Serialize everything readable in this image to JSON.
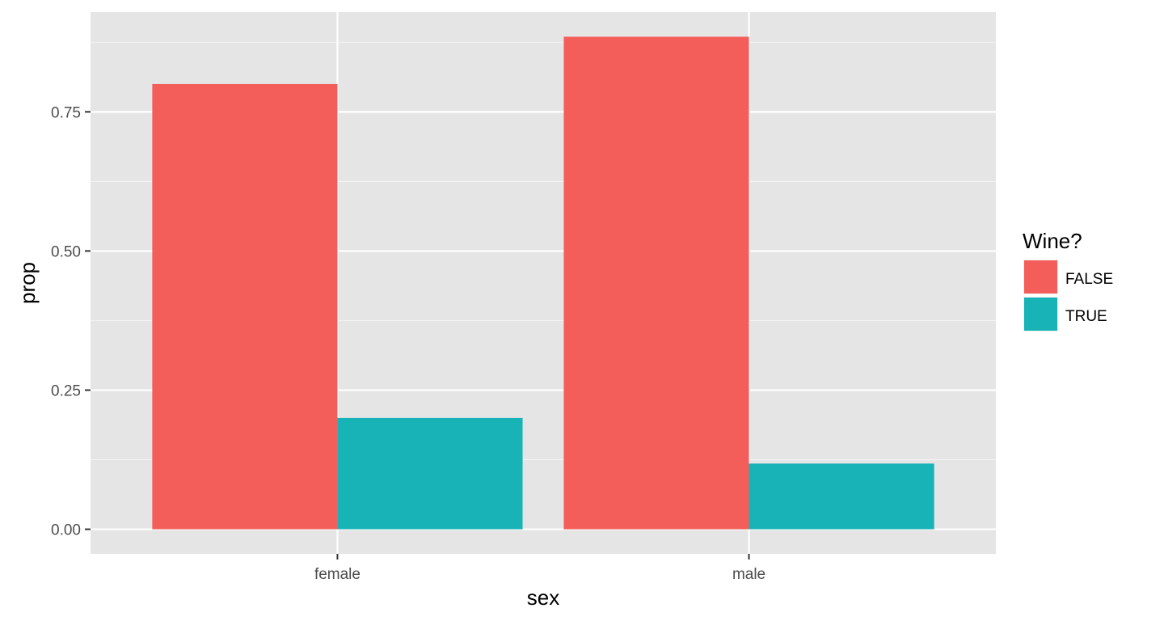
{
  "chart_data": {
    "type": "bar",
    "title": "",
    "xlabel": "sex",
    "ylabel": "prop",
    "categories": [
      "female",
      "male"
    ],
    "series": [
      {
        "name": "FALSE",
        "color": "#F35E5A",
        "values": [
          0.8,
          0.885
        ]
      },
      {
        "name": "TRUE",
        "color": "#17B3B7",
        "values": [
          0.2,
          0.118
        ]
      }
    ],
    "ylim": [
      -0.0442,
      0.9292
    ],
    "yticks": [
      0.0,
      0.25,
      0.5,
      0.75
    ],
    "ytick_labels": [
      "0.00",
      "0.25",
      "0.50",
      "0.75"
    ],
    "grid": true,
    "panel_background": "#E5E5E5",
    "legend": {
      "title": "Wine?",
      "position": "right",
      "entries": [
        "FALSE",
        "TRUE"
      ]
    }
  }
}
